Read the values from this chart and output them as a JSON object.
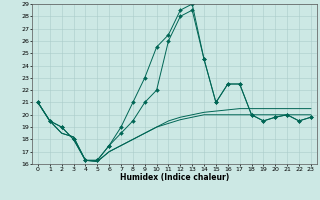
{
  "xlabel": "Humidex (Indice chaleur)",
  "ylabel": "",
  "xlim": [
    -0.5,
    23.5
  ],
  "ylim": [
    16,
    29
  ],
  "xticks": [
    0,
    1,
    2,
    3,
    4,
    5,
    6,
    7,
    8,
    9,
    10,
    11,
    12,
    13,
    14,
    15,
    16,
    17,
    18,
    19,
    20,
    21,
    22,
    23
  ],
  "yticks": [
    16,
    17,
    18,
    19,
    20,
    21,
    22,
    23,
    24,
    25,
    26,
    27,
    28,
    29
  ],
  "bg_color": "#cce8e4",
  "grid_color": "#aaccca",
  "line_color": "#006655",
  "series": [
    [
      21.0,
      19.5,
      19.0,
      18.0,
      16.3,
      16.3,
      17.5,
      19.0,
      21.0,
      23.0,
      25.5,
      26.5,
      28.5,
      29.0,
      24.5,
      21.0,
      22.5,
      22.5,
      20.0,
      19.5,
      19.8,
      20.0,
      19.5,
      19.8
    ],
    [
      21.0,
      19.5,
      19.0,
      18.0,
      16.3,
      16.3,
      17.5,
      18.5,
      19.5,
      21.0,
      22.0,
      26.0,
      28.0,
      28.5,
      24.5,
      21.0,
      22.5,
      22.5,
      20.0,
      19.5,
      19.8,
      20.0,
      19.5,
      19.8
    ],
    [
      21.0,
      19.5,
      18.5,
      18.2,
      16.3,
      16.2,
      17.0,
      17.5,
      18.0,
      18.5,
      19.0,
      19.5,
      19.8,
      20.0,
      20.2,
      20.3,
      20.4,
      20.5,
      20.5,
      20.5,
      20.5,
      20.5,
      20.5,
      20.5
    ],
    [
      21.0,
      19.5,
      18.5,
      18.2,
      16.3,
      16.2,
      17.0,
      17.5,
      18.0,
      18.5,
      19.0,
      19.3,
      19.6,
      19.8,
      20.0,
      20.0,
      20.0,
      20.0,
      20.0,
      20.0,
      20.0,
      20.0,
      20.0,
      20.0
    ]
  ],
  "has_markers": [
    true,
    true,
    false,
    false
  ],
  "marker_style": "D",
  "marker_size": 2.0,
  "linewidth": 0.7,
  "tick_fontsize": 4.5,
  "xlabel_fontsize": 5.5
}
